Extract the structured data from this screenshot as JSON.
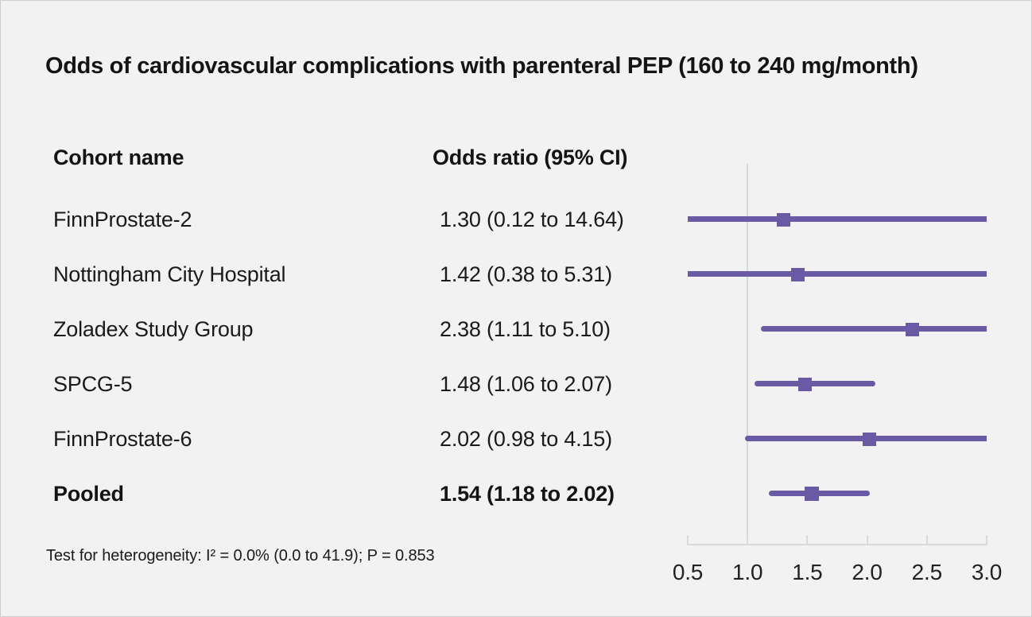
{
  "chart_data": {
    "type": "forest",
    "title": "Odds of cardiovascular complications with parenteral PEP (160 to 240 mg/month)",
    "columns": [
      "Cohort name",
      "Odds ratio (95% CI)"
    ],
    "rows": [
      {
        "label": "FinnProstate-2",
        "or_text": "1.30 (0.12 to 14.64)",
        "estimate": 1.3,
        "ci_low": 0.12,
        "ci_high": 14.64,
        "pooled": false
      },
      {
        "label": "Nottingham City Hospital",
        "or_text": "1.42 (0.38 to 5.31)",
        "estimate": 1.42,
        "ci_low": 0.38,
        "ci_high": 5.31,
        "pooled": false
      },
      {
        "label": "Zoladex Study Group",
        "or_text": "2.38 (1.11 to 5.10)",
        "estimate": 2.38,
        "ci_low": 1.11,
        "ci_high": 5.1,
        "pooled": false
      },
      {
        "label": "SPCG-5",
        "or_text": "1.48 (1.06 to 2.07)",
        "estimate": 1.48,
        "ci_low": 1.06,
        "ci_high": 2.07,
        "pooled": false
      },
      {
        "label": "FinnProstate-6",
        "or_text": "2.02 (0.98 to 4.15)",
        "estimate": 2.02,
        "ci_low": 0.98,
        "ci_high": 4.15,
        "pooled": false
      },
      {
        "label": "Pooled",
        "or_text": "1.54 (1.18 to 2.02)",
        "estimate": 1.54,
        "ci_low": 1.18,
        "ci_high": 2.02,
        "pooled": true
      }
    ],
    "axis": {
      "min": 0.5,
      "max": 3.0,
      "tick_values": [
        0.5,
        1.0,
        1.5,
        2.0,
        2.5,
        3.0
      ],
      "tick_labels": [
        "0.5",
        "1.0",
        "1.5",
        "2.0",
        "2.5",
        "3.0"
      ],
      "reference_value": 1.0,
      "scale": "linear",
      "clipped_to_range": true
    },
    "footnote": "Test for heterogeneity: I² = 0.0% (0.0 to 41.9); P = 0.853",
    "colors": {
      "marker": "#6a59a5",
      "ci_line": "#6a59a5",
      "reference_line": "#d4d9e1",
      "axis_line": "#dadada",
      "text": "#1a1a1a",
      "background": "#f2f2f2"
    }
  }
}
